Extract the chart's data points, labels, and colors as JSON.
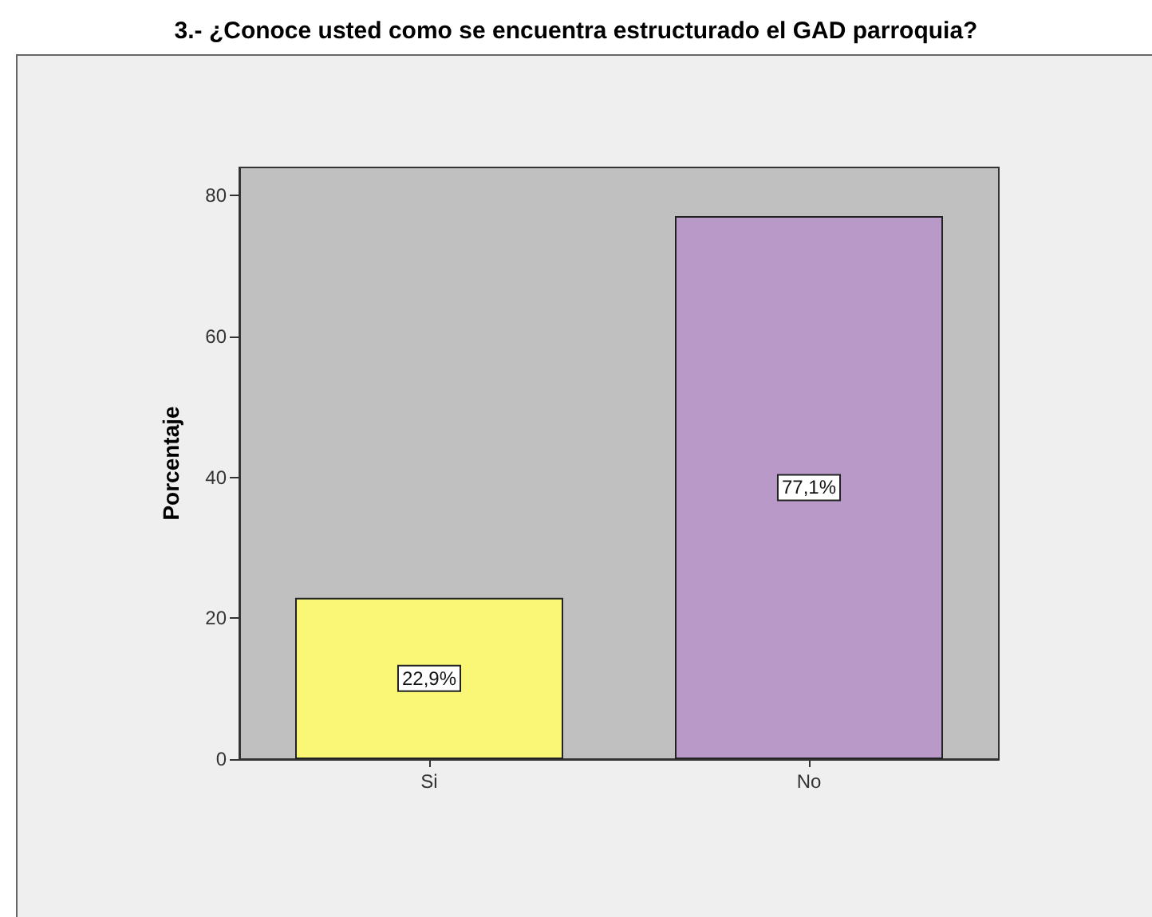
{
  "chart_data": {
    "type": "bar",
    "title": "3.- ¿Conoce usted como se encuentra estructurado el GAD parroquia?",
    "ylabel": "Porcentaje",
    "categories": [
      "Si",
      "No"
    ],
    "values": [
      22.9,
      77.1
    ],
    "colors": [
      "#fbf776",
      "#b899c8"
    ],
    "value_labels": [
      "22,9%",
      "77,1%"
    ],
    "ylim": [
      0,
      84
    ],
    "yticks": [
      0,
      20,
      40,
      60,
      80
    ],
    "grid": false
  }
}
